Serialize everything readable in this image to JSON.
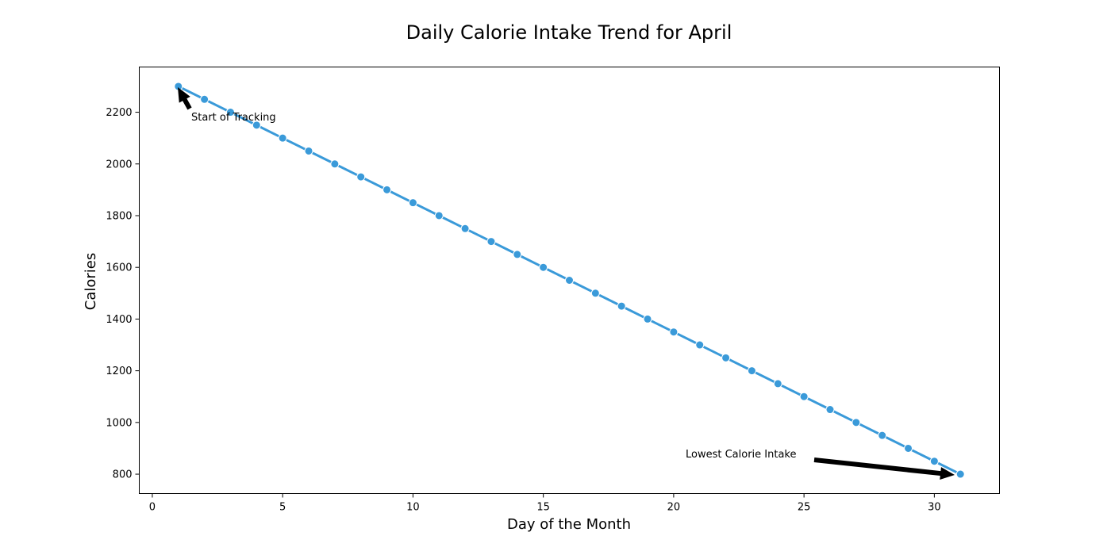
{
  "chart_data": {
    "type": "line",
    "title": "Daily Calorie Intake Trend for April",
    "xlabel": "Day of the Month",
    "ylabel": "Calories",
    "x": [
      1,
      2,
      3,
      4,
      5,
      6,
      7,
      8,
      9,
      10,
      11,
      12,
      13,
      14,
      15,
      16,
      17,
      18,
      19,
      20,
      21,
      22,
      23,
      24,
      25,
      26,
      27,
      28,
      29,
      30,
      31
    ],
    "series": [
      {
        "values": [
          2300,
          2250,
          2200,
          2150,
          2100,
          2050,
          2000,
          1950,
          1900,
          1850,
          1800,
          1750,
          1700,
          1650,
          1600,
          1550,
          1500,
          1450,
          1400,
          1350,
          1300,
          1250,
          1200,
          1150,
          1100,
          1050,
          1000,
          950,
          900,
          850,
          800
        ],
        "color": "#3a9ad9"
      }
    ],
    "xlim": [
      -0.5,
      32.5
    ],
    "ylim": [
      725,
      2375
    ],
    "xticks": [
      0,
      5,
      10,
      15,
      20,
      25,
      30
    ],
    "yticks": [
      800,
      1000,
      1200,
      1400,
      1600,
      1800,
      2000,
      2200
    ],
    "grid": false,
    "annotations": [
      {
        "text": "Start of Tracking",
        "x": 1,
        "y": 2300,
        "text_x": 1.5,
        "text_y": 2175
      },
      {
        "text": "Lowest Calorie Intake",
        "x": 31,
        "y": 800,
        "text_x": 20.5,
        "text_y": 875
      }
    ]
  }
}
